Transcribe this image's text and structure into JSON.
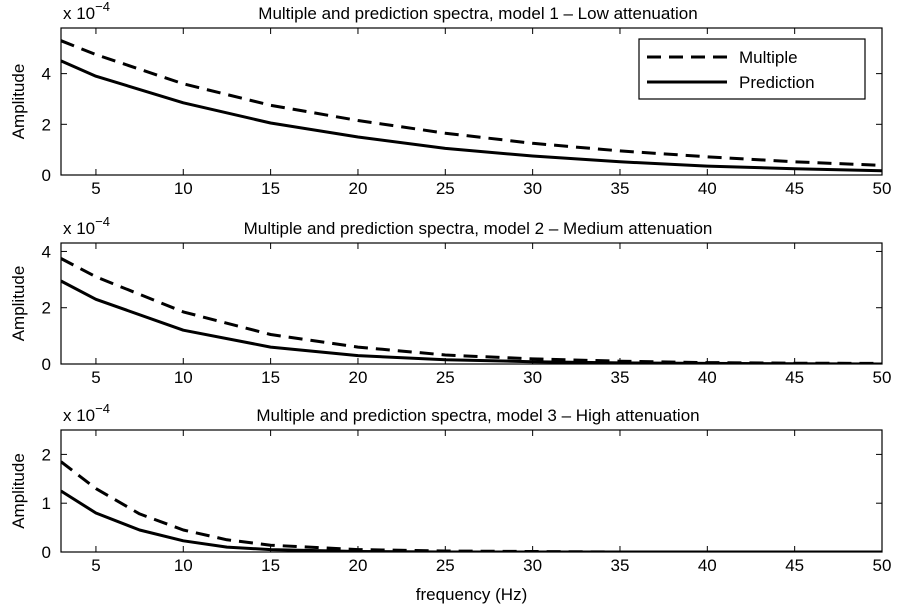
{
  "chart_data": [
    {
      "type": "line",
      "title": "Multiple and prediction spectra, model 1 – Low attenuation",
      "xlabel": "",
      "ylabel": "Amplitude",
      "exponent_base": "x 10",
      "exponent_power": "−4",
      "xlim": [
        3,
        50
      ],
      "ylim": [
        0,
        5.8
      ],
      "xticks": [
        5,
        10,
        15,
        20,
        25,
        30,
        35,
        40,
        45,
        50
      ],
      "yticks": [
        0,
        2,
        4
      ],
      "grid": false,
      "legend": {
        "position": "top-right",
        "entries": [
          "Multiple",
          "Prediction"
        ]
      },
      "series": [
        {
          "name": "Multiple",
          "style": "dashed",
          "x": [
            3,
            5,
            10,
            15,
            20,
            25,
            30,
            35,
            40,
            45,
            50
          ],
          "y": [
            5.3,
            4.75,
            3.6,
            2.75,
            2.15,
            1.65,
            1.25,
            0.95,
            0.72,
            0.52,
            0.38
          ]
        },
        {
          "name": "Prediction",
          "style": "solid",
          "x": [
            3,
            5,
            10,
            15,
            20,
            25,
            30,
            35,
            40,
            45,
            50
          ],
          "y": [
            4.5,
            3.9,
            2.85,
            2.05,
            1.5,
            1.05,
            0.75,
            0.52,
            0.35,
            0.25,
            0.17
          ]
        }
      ]
    },
    {
      "type": "line",
      "title": "Multiple and prediction spectra, model 2 – Medium attenuation",
      "xlabel": "",
      "ylabel": "Amplitude",
      "exponent_base": "x 10",
      "exponent_power": "−4",
      "xlim": [
        3,
        50
      ],
      "ylim": [
        0,
        4.3
      ],
      "xticks": [
        5,
        10,
        15,
        20,
        25,
        30,
        35,
        40,
        45,
        50
      ],
      "yticks": [
        0,
        2,
        4
      ],
      "grid": false,
      "series": [
        {
          "name": "Multiple",
          "style": "dashed",
          "x": [
            3,
            5,
            10,
            15,
            20,
            25,
            30,
            35,
            40,
            45,
            50
          ],
          "y": [
            3.75,
            3.1,
            1.85,
            1.05,
            0.6,
            0.32,
            0.18,
            0.1,
            0.05,
            0.03,
            0.02
          ]
        },
        {
          "name": "Prediction",
          "style": "solid",
          "x": [
            3,
            5,
            10,
            15,
            20,
            25,
            30,
            35,
            40,
            45,
            50
          ],
          "y": [
            2.95,
            2.3,
            1.2,
            0.6,
            0.3,
            0.15,
            0.08,
            0.04,
            0.02,
            0.01,
            0.0
          ]
        }
      ]
    },
    {
      "type": "line",
      "title": "Multiple and prediction spectra, model 3 – High attenuation",
      "xlabel": "frequency (Hz)",
      "ylabel": "Amplitude",
      "exponent_base": "x 10",
      "exponent_power": "−4",
      "xlim": [
        3,
        50
      ],
      "ylim": [
        0,
        2.5
      ],
      "xticks": [
        5,
        10,
        15,
        20,
        25,
        30,
        35,
        40,
        45,
        50
      ],
      "yticks": [
        0,
        1,
        2
      ],
      "grid": false,
      "series": [
        {
          "name": "Multiple",
          "style": "dashed",
          "x": [
            3,
            5,
            7.5,
            10,
            12.5,
            15,
            20,
            25,
            30,
            35,
            40,
            45,
            50
          ],
          "y": [
            1.85,
            1.3,
            0.78,
            0.45,
            0.25,
            0.14,
            0.05,
            0.02,
            0.01,
            0.0,
            0.0,
            0.0,
            0.0
          ]
        },
        {
          "name": "Prediction",
          "style": "solid",
          "x": [
            3,
            5,
            7.5,
            10,
            12.5,
            15,
            20,
            25,
            30,
            35,
            40,
            45,
            50
          ],
          "y": [
            1.25,
            0.8,
            0.45,
            0.23,
            0.1,
            0.05,
            0.01,
            0.0,
            0.0,
            0.0,
            0.0,
            0.0,
            0.0
          ]
        }
      ]
    }
  ]
}
